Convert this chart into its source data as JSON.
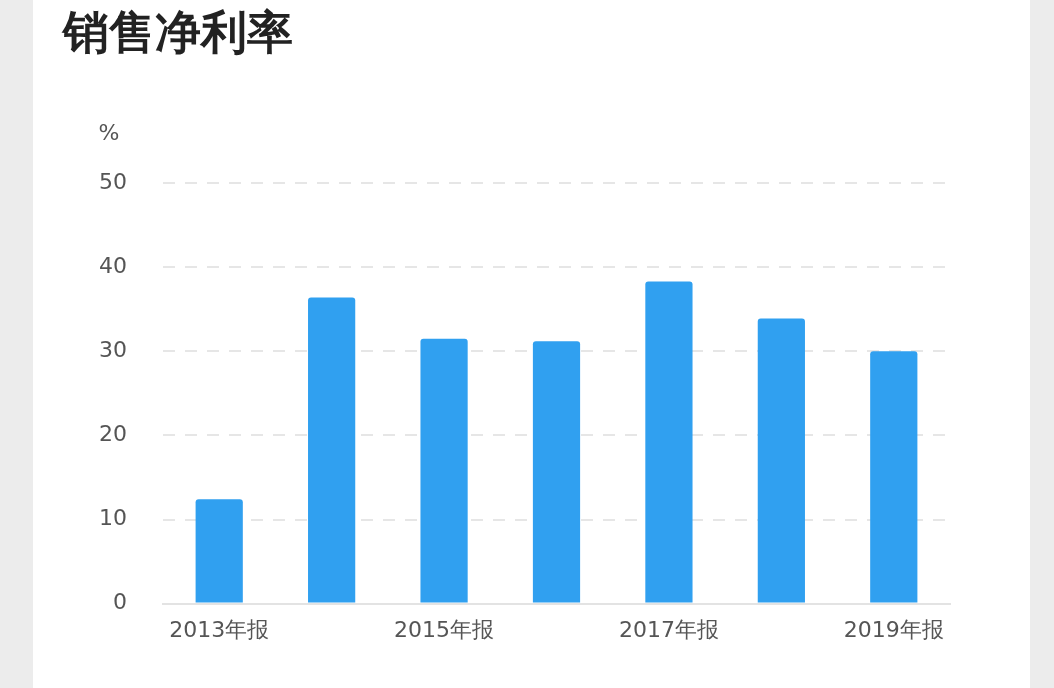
{
  "chart_data": {
    "type": "bar",
    "title": "销售净利率",
    "ylabel": "%",
    "categories": [
      "2013年报",
      null,
      "2015年报",
      null,
      "2017年报",
      null,
      "2019年报"
    ],
    "values": [
      12.4,
      36.4,
      31.5,
      31.2,
      38.3,
      33.9,
      30.0
    ],
    "color": "#30a0f0",
    "ylim": [
      0,
      50
    ],
    "yticks": [
      0,
      10,
      20,
      30,
      40,
      50
    ],
    "grid": "y",
    "legend": false
  }
}
